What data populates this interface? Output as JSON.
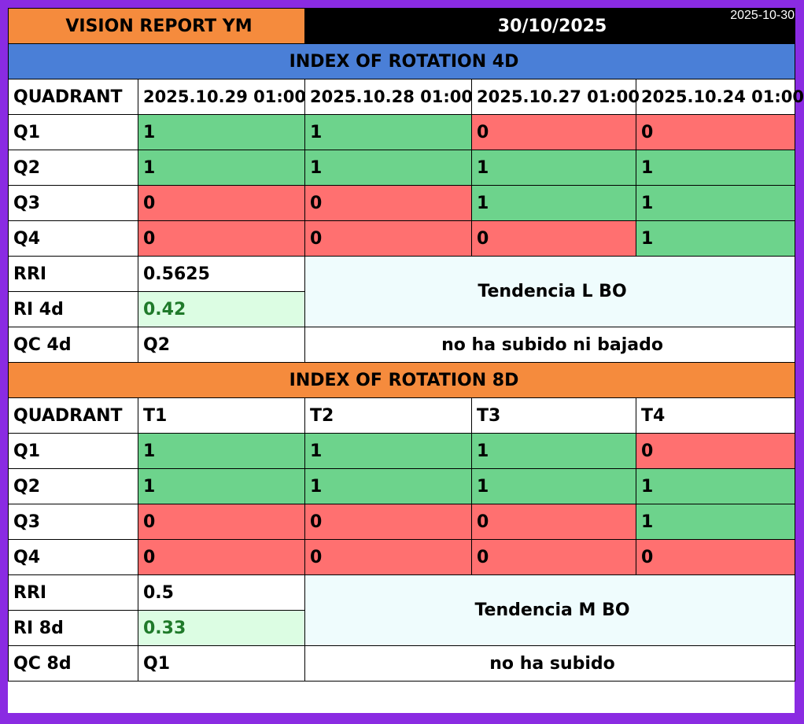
{
  "header": {
    "title": "VISION REPORT YM",
    "date": "30/10/2025",
    "stamp": "2025-10-30"
  },
  "section_4d": {
    "title": "INDEX OF ROTATION 4D",
    "quadrant_label": "QUADRANT",
    "columns": [
      "2025.10.29 01:00",
      "2025.10.28 01:00",
      "2025.10.27 01:00",
      "2025.10.24 01:00"
    ],
    "rows": [
      {
        "label": "Q1",
        "values": [
          "1",
          "1",
          "0",
          "0"
        ]
      },
      {
        "label": "Q2",
        "values": [
          "1",
          "1",
          "1",
          "1"
        ]
      },
      {
        "label": "Q3",
        "values": [
          "0",
          "0",
          "1",
          "1"
        ]
      },
      {
        "label": "Q4",
        "values": [
          "0",
          "0",
          "0",
          "1"
        ]
      }
    ],
    "rri_label": "RRI",
    "rri_value": "0.5625",
    "ri_label": "RI 4d",
    "ri_value": "0.42",
    "trend": "Tendencia L BO",
    "qc_label": "QC 4d",
    "qc_value": "Q2",
    "qc_note": "no ha subido ni bajado"
  },
  "section_8d": {
    "title": "INDEX OF ROTATION 8D",
    "quadrant_label": "QUADRANT",
    "columns": [
      "T1",
      "T2",
      "T3",
      "T4"
    ],
    "rows": [
      {
        "label": "Q1",
        "values": [
          "1",
          "1",
          "1",
          "0"
        ]
      },
      {
        "label": "Q2",
        "values": [
          "1",
          "1",
          "1",
          "1"
        ]
      },
      {
        "label": "Q3",
        "values": [
          "0",
          "0",
          "0",
          "1"
        ]
      },
      {
        "label": "Q4",
        "values": [
          "0",
          "0",
          "0",
          "0"
        ]
      }
    ],
    "rri_label": "RRI",
    "rri_value": "0.5",
    "ri_label": "RI 8d",
    "ri_value": "0.33",
    "trend": "Tendencia M BO",
    "qc_label": "QC 8d",
    "qc_value": "Q1",
    "qc_note": "no ha subido"
  },
  "colors": {
    "one": "#6dd38c",
    "zero": "#ff7070",
    "ri_bg": "#dcfde3",
    "ri_text": "#1f7a2a",
    "band_4d": "#4a7fd7",
    "band_8d": "#f58b3d",
    "border_outer": "#8a2be2"
  }
}
